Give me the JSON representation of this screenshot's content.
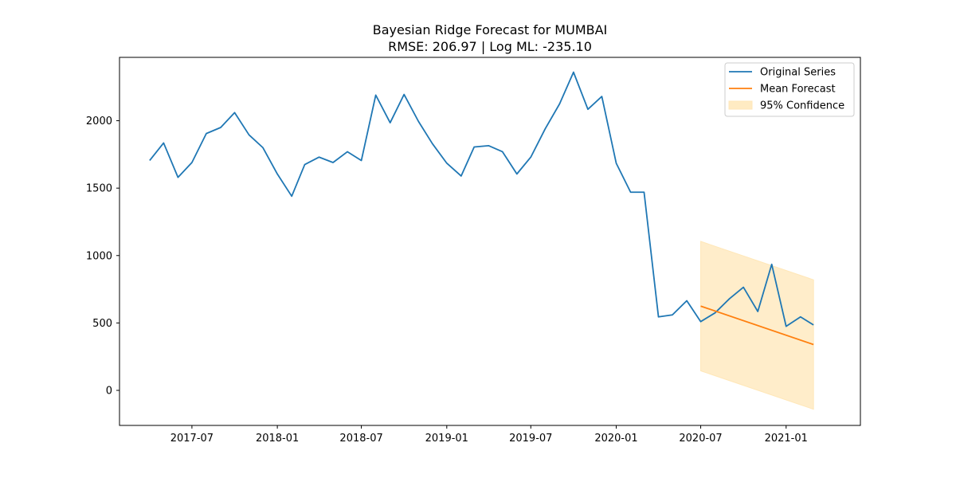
{
  "chart_data": {
    "type": "line",
    "title": "Bayesian Ridge Forecast for MUMBAI",
    "subtitle": "RMSE: 206.97 | Log ML: -235.10",
    "xlabel": "",
    "ylabel": "",
    "x_type": "date",
    "xlim": [
      "2017-01-26",
      "2021-06-10"
    ],
    "ylim": [
      -260,
      2470
    ],
    "grid": false,
    "legend_position": "top-right",
    "xticks": [
      "2017-07",
      "2018-01",
      "2018-07",
      "2019-01",
      "2019-07",
      "2020-01",
      "2020-07",
      "2021-01"
    ],
    "yticks": [
      0,
      500,
      1000,
      1500,
      2000
    ],
    "series": [
      {
        "name": "Original Series",
        "color": "#1f77b4",
        "style": "line",
        "x": [
          "2017-04",
          "2017-05",
          "2017-06",
          "2017-07",
          "2017-08",
          "2017-09",
          "2017-10",
          "2017-11",
          "2017-12",
          "2018-01",
          "2018-02",
          "2018-03",
          "2018-04",
          "2018-05",
          "2018-06",
          "2018-07",
          "2018-08",
          "2018-09",
          "2018-10",
          "2018-11",
          "2018-12",
          "2019-01",
          "2019-02",
          "2019-03",
          "2019-04",
          "2019-05",
          "2019-06",
          "2019-07",
          "2019-08",
          "2019-09",
          "2019-10",
          "2019-11",
          "2019-12",
          "2020-01",
          "2020-02",
          "2020-03",
          "2020-04",
          "2020-05",
          "2020-06",
          "2020-07",
          "2020-08",
          "2020-09",
          "2020-10",
          "2020-11",
          "2020-12",
          "2021-01",
          "2021-02",
          "2021-03"
        ],
        "values": [
          1705,
          1835,
          1580,
          1690,
          1905,
          1950,
          2060,
          1895,
          1800,
          1605,
          1440,
          1675,
          1730,
          1690,
          1770,
          1705,
          2190,
          1985,
          2195,
          1995,
          1830,
          1685,
          1590,
          1805,
          1815,
          1770,
          1605,
          1730,
          1940,
          2125,
          2360,
          2085,
          2180,
          1685,
          1470,
          1470,
          545,
          560,
          665,
          510,
          575,
          680,
          765,
          585,
          935,
          475,
          545,
          485
        ]
      },
      {
        "name": "Mean Forecast",
        "color": "#ff7f0e",
        "style": "line",
        "x": [
          "2020-07",
          "2021-03"
        ],
        "values": [
          625,
          340
        ]
      },
      {
        "name": "95% Confidence",
        "color": "#ffe7b8",
        "style": "band",
        "x": [
          "2020-07",
          "2021-03"
        ],
        "lower": [
          145,
          -140
        ],
        "upper": [
          1105,
          820
        ]
      }
    ]
  }
}
